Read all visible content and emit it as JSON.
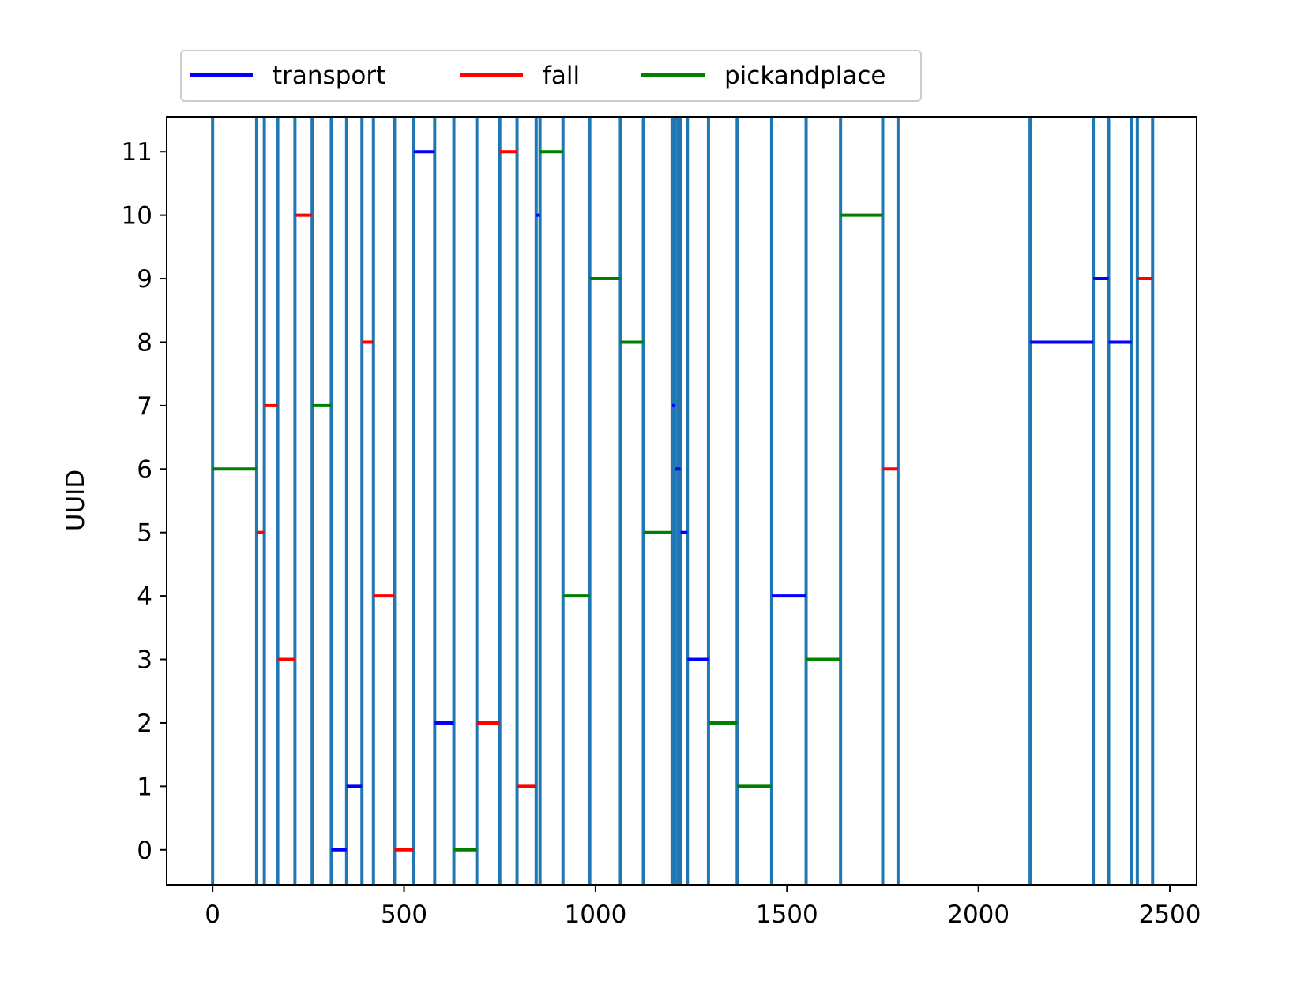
{
  "chart_data": {
    "type": "timeline",
    "ylabel": "UUID",
    "xlabel": "",
    "title": "",
    "xlim": [
      -120,
      2570
    ],
    "ylim": [
      -0.55,
      11.55
    ],
    "xticks": [
      0,
      500,
      1000,
      1500,
      2000,
      2500
    ],
    "yticks": [
      0,
      1,
      2,
      3,
      4,
      5,
      6,
      7,
      8,
      9,
      10,
      11
    ],
    "legend": {
      "placement": "top-left, above axes",
      "entries": [
        {
          "key": "transport",
          "label": "transport",
          "color": "#0000ff"
        },
        {
          "key": "fall",
          "label": "fall",
          "color": "#ff0000"
        },
        {
          "key": "pickandplace",
          "label": "pickandplace",
          "color": "#008000"
        }
      ]
    },
    "vlines_color": "#1f77b4",
    "vlines_x": [
      0,
      115,
      135,
      170,
      215,
      260,
      310,
      350,
      390,
      420,
      475,
      525,
      580,
      630,
      690,
      750,
      795,
      845,
      855,
      915,
      985,
      1065,
      1125,
      1200,
      1207,
      1215,
      1222,
      1240,
      1295,
      1370,
      1460,
      1550,
      1640,
      1750,
      1790,
      2135,
      2300,
      2340,
      2400,
      2415,
      2455
    ],
    "segments": [
      {
        "uuid": 6,
        "start": 0,
        "end": 115,
        "activity": "pickandplace"
      },
      {
        "uuid": 5,
        "start": 115,
        "end": 135,
        "activity": "fall"
      },
      {
        "uuid": 7,
        "start": 135,
        "end": 170,
        "activity": "fall"
      },
      {
        "uuid": 3,
        "start": 170,
        "end": 215,
        "activity": "fall"
      },
      {
        "uuid": 10,
        "start": 215,
        "end": 260,
        "activity": "fall"
      },
      {
        "uuid": 7,
        "start": 260,
        "end": 310,
        "activity": "pickandplace"
      },
      {
        "uuid": 0,
        "start": 310,
        "end": 350,
        "activity": "transport"
      },
      {
        "uuid": 1,
        "start": 350,
        "end": 390,
        "activity": "transport"
      },
      {
        "uuid": 8,
        "start": 390,
        "end": 420,
        "activity": "fall"
      },
      {
        "uuid": 4,
        "start": 420,
        "end": 475,
        "activity": "fall"
      },
      {
        "uuid": 0,
        "start": 475,
        "end": 525,
        "activity": "fall"
      },
      {
        "uuid": 11,
        "start": 525,
        "end": 580,
        "activity": "transport"
      },
      {
        "uuid": 2,
        "start": 580,
        "end": 630,
        "activity": "transport"
      },
      {
        "uuid": 0,
        "start": 630,
        "end": 690,
        "activity": "pickandplace"
      },
      {
        "uuid": 2,
        "start": 690,
        "end": 750,
        "activity": "fall"
      },
      {
        "uuid": 11,
        "start": 750,
        "end": 795,
        "activity": "fall"
      },
      {
        "uuid": 1,
        "start": 795,
        "end": 845,
        "activity": "fall"
      },
      {
        "uuid": 10,
        "start": 845,
        "end": 855,
        "activity": "transport"
      },
      {
        "uuid": 11,
        "start": 855,
        "end": 915,
        "activity": "pickandplace"
      },
      {
        "uuid": 4,
        "start": 915,
        "end": 985,
        "activity": "pickandplace"
      },
      {
        "uuid": 9,
        "start": 985,
        "end": 1065,
        "activity": "pickandplace"
      },
      {
        "uuid": 8,
        "start": 1065,
        "end": 1125,
        "activity": "pickandplace"
      },
      {
        "uuid": 5,
        "start": 1125,
        "end": 1200,
        "activity": "pickandplace"
      },
      {
        "uuid": 7,
        "start": 1200,
        "end": 1207,
        "activity": "transport"
      },
      {
        "uuid": 6,
        "start": 1207,
        "end": 1222,
        "activity": "transport"
      },
      {
        "uuid": 5,
        "start": 1222,
        "end": 1240,
        "activity": "transport"
      },
      {
        "uuid": 3,
        "start": 1240,
        "end": 1295,
        "activity": "transport"
      },
      {
        "uuid": 2,
        "start": 1295,
        "end": 1370,
        "activity": "pickandplace"
      },
      {
        "uuid": 1,
        "start": 1370,
        "end": 1460,
        "activity": "pickandplace"
      },
      {
        "uuid": 4,
        "start": 1460,
        "end": 1550,
        "activity": "transport"
      },
      {
        "uuid": 3,
        "start": 1550,
        "end": 1640,
        "activity": "pickandplace"
      },
      {
        "uuid": 10,
        "start": 1640,
        "end": 1750,
        "activity": "pickandplace"
      },
      {
        "uuid": 6,
        "start": 1750,
        "end": 1790,
        "activity": "fall"
      },
      {
        "uuid": 8,
        "start": 2135,
        "end": 2300,
        "activity": "transport"
      },
      {
        "uuid": 9,
        "start": 2300,
        "end": 2340,
        "activity": "transport"
      },
      {
        "uuid": 8,
        "start": 2340,
        "end": 2400,
        "activity": "transport"
      },
      {
        "uuid": 9,
        "start": 2415,
        "end": 2455,
        "activity": "fall"
      }
    ]
  }
}
